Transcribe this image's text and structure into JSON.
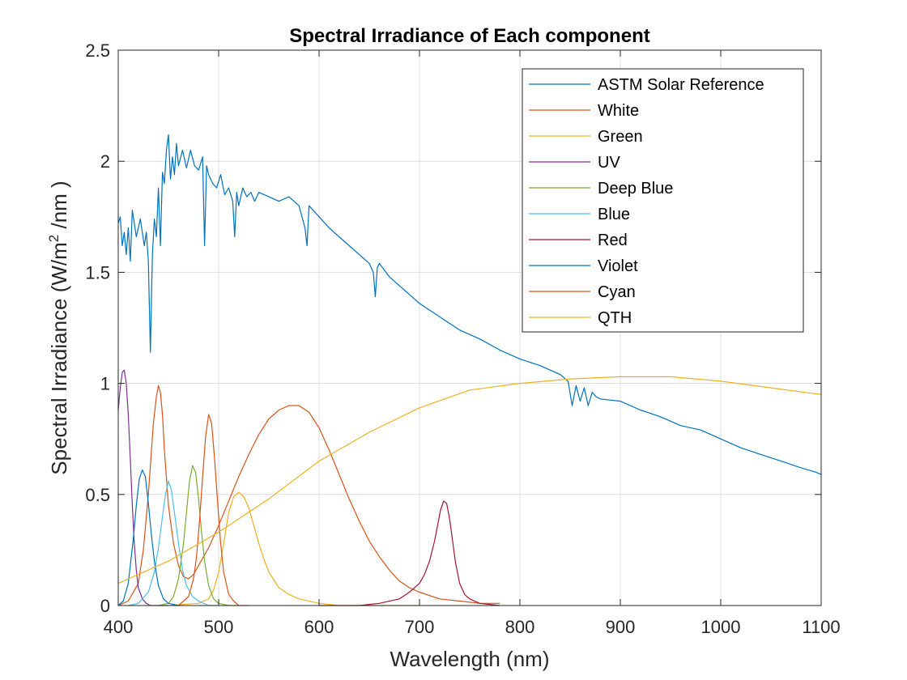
{
  "chart_data": {
    "type": "line",
    "title": "Spectral Irradiance of Each component",
    "xlabel": "Wavelength (nm)",
    "ylabel_parts": [
      "Spectral Irradiance (W/m",
      "2",
      " /nm )"
    ],
    "xlim": [
      400,
      1100
    ],
    "ylim": [
      0,
      2.5
    ],
    "xticks": [
      400,
      500,
      600,
      700,
      800,
      900,
      1000,
      1100
    ],
    "yticks": [
      0,
      0.5,
      1,
      1.5,
      2,
      2.5
    ],
    "xtick_labels": [
      "400",
      "500",
      "600",
      "700",
      "800",
      "900",
      "1000",
      "1100"
    ],
    "ytick_labels": [
      "0",
      "0.5",
      "1",
      "1.5",
      "2",
      "2.5"
    ],
    "grid": true,
    "legend_position": "top-right",
    "series": [
      {
        "name": "ASTM Solar Reference",
        "color": "#0072BD",
        "x": [
          400,
          402,
          404,
          406,
          408,
          410,
          412,
          414,
          418,
          422,
          426,
          428,
          430,
          432,
          434,
          436,
          438,
          440,
          442,
          444,
          446,
          448,
          450,
          452,
          454,
          456,
          458,
          460,
          464,
          468,
          472,
          476,
          480,
          484,
          486,
          488,
          490,
          494,
          498,
          502,
          506,
          510,
          514,
          516,
          518,
          520,
          524,
          528,
          532,
          536,
          540,
          550,
          560,
          570,
          580,
          586,
          588,
          590,
          600,
          610,
          620,
          630,
          640,
          650,
          654,
          656,
          658,
          660,
          670,
          680,
          690,
          700,
          720,
          740,
          760,
          780,
          800,
          820,
          840,
          848,
          852,
          856,
          860,
          864,
          868,
          872,
          876,
          880,
          900,
          920,
          940,
          960,
          980,
          1000,
          1020,
          1040,
          1060,
          1080,
          1095,
          1100
        ],
        "y": [
          1.72,
          1.75,
          1.62,
          1.68,
          1.58,
          1.7,
          1.55,
          1.78,
          1.66,
          1.74,
          1.62,
          1.68,
          1.55,
          1.14,
          1.58,
          1.74,
          1.66,
          1.88,
          1.62,
          1.95,
          1.9,
          2.05,
          2.12,
          1.92,
          2.02,
          1.94,
          2.08,
          1.98,
          2.05,
          1.97,
          2.05,
          1.98,
          1.96,
          2.02,
          1.62,
          1.98,
          1.94,
          1.9,
          1.88,
          1.94,
          1.85,
          1.88,
          1.82,
          1.66,
          1.86,
          1.8,
          1.88,
          1.84,
          1.86,
          1.82,
          1.86,
          1.84,
          1.82,
          1.84,
          1.8,
          1.7,
          1.62,
          1.8,
          1.75,
          1.7,
          1.66,
          1.62,
          1.58,
          1.54,
          1.5,
          1.39,
          1.52,
          1.54,
          1.48,
          1.44,
          1.4,
          1.36,
          1.3,
          1.24,
          1.2,
          1.15,
          1.11,
          1.08,
          1.04,
          1.01,
          0.9,
          0.99,
          0.92,
          0.98,
          0.9,
          0.96,
          0.94,
          0.93,
          0.92,
          0.88,
          0.85,
          0.81,
          0.79,
          0.75,
          0.71,
          0.68,
          0.65,
          0.62,
          0.6,
          0.59
        ]
      },
      {
        "name": "White",
        "color": "#D95319",
        "x": [
          400,
          410,
          420,
          425,
          430,
          435,
          438,
          440,
          442,
          444,
          446,
          450,
          455,
          460,
          465,
          470,
          475,
          480,
          490,
          500,
          510,
          520,
          530,
          540,
          550,
          560,
          570,
          580,
          590,
          600,
          610,
          620,
          630,
          640,
          650,
          660,
          670,
          680,
          690,
          700,
          720,
          740,
          760,
          780
        ],
        "y": [
          0.0,
          0.02,
          0.1,
          0.25,
          0.5,
          0.82,
          0.94,
          0.99,
          0.96,
          0.86,
          0.7,
          0.45,
          0.28,
          0.18,
          0.13,
          0.12,
          0.14,
          0.18,
          0.26,
          0.36,
          0.47,
          0.58,
          0.68,
          0.77,
          0.84,
          0.88,
          0.9,
          0.9,
          0.87,
          0.8,
          0.7,
          0.59,
          0.48,
          0.38,
          0.29,
          0.22,
          0.16,
          0.11,
          0.08,
          0.06,
          0.03,
          0.02,
          0.01,
          0.01
        ]
      },
      {
        "name": "Green",
        "color": "#EDB120",
        "x": [
          450,
          480,
          490,
          495,
          500,
          505,
          510,
          515,
          520,
          525,
          530,
          535,
          540,
          545,
          550,
          560,
          570,
          580,
          600,
          620,
          650,
          700
        ],
        "y": [
          0.0,
          0.01,
          0.03,
          0.07,
          0.15,
          0.28,
          0.42,
          0.49,
          0.51,
          0.49,
          0.44,
          0.36,
          0.28,
          0.21,
          0.15,
          0.08,
          0.05,
          0.03,
          0.01,
          0.0,
          0.0,
          0.0
        ]
      },
      {
        "name": "UV",
        "color": "#7E2F8E",
        "x": [
          400,
          402,
          404,
          406,
          408,
          410,
          412,
          414,
          416,
          418,
          420,
          424,
          428,
          432,
          440,
          450
        ],
        "y": [
          0.88,
          0.98,
          1.05,
          1.06,
          1.0,
          0.86,
          0.66,
          0.45,
          0.28,
          0.16,
          0.08,
          0.03,
          0.01,
          0.0,
          0.0,
          0.0
        ]
      },
      {
        "name": "Deep Blue",
        "color": "#77AC30",
        "x": [
          440,
          450,
          455,
          460,
          465,
          468,
          471,
          474,
          477,
          480,
          483,
          486,
          490,
          495,
          500,
          510,
          520
        ],
        "y": [
          0.0,
          0.01,
          0.04,
          0.12,
          0.28,
          0.42,
          0.56,
          0.63,
          0.6,
          0.48,
          0.33,
          0.2,
          0.09,
          0.03,
          0.01,
          0.0,
          0.0
        ]
      },
      {
        "name": "Blue",
        "color": "#4DBEEE",
        "x": [
          410,
          420,
          430,
          436,
          440,
          444,
          447,
          450,
          453,
          456,
          460,
          464,
          468,
          474,
          480,
          490,
          500
        ],
        "y": [
          0.0,
          0.01,
          0.06,
          0.15,
          0.26,
          0.4,
          0.5,
          0.56,
          0.52,
          0.42,
          0.28,
          0.16,
          0.09,
          0.04,
          0.02,
          0.0,
          0.0
        ]
      },
      {
        "name": "Red",
        "color": "#A2142F",
        "x": [
          600,
          640,
          660,
          680,
          690,
          700,
          705,
          710,
          715,
          718,
          721,
          724,
          727,
          730,
          733,
          736,
          740,
          745,
          750,
          760,
          780
        ],
        "y": [
          0.0,
          0.0,
          0.01,
          0.03,
          0.06,
          0.1,
          0.14,
          0.2,
          0.29,
          0.36,
          0.43,
          0.47,
          0.46,
          0.39,
          0.29,
          0.19,
          0.1,
          0.05,
          0.03,
          0.01,
          0.0
        ]
      },
      {
        "name": "Violet",
        "color": "#0072BD",
        "x": [
          400,
          405,
          410,
          415,
          418,
          421,
          424,
          427,
          430,
          433,
          436,
          440,
          445,
          450,
          460
        ],
        "y": [
          0.0,
          0.02,
          0.1,
          0.3,
          0.45,
          0.57,
          0.61,
          0.58,
          0.46,
          0.32,
          0.2,
          0.09,
          0.03,
          0.01,
          0.0
        ]
      },
      {
        "name": "Cyan",
        "color": "#D95319",
        "x": [
          460,
          470,
          475,
          478,
          481,
          484,
          487,
          490,
          493,
          496,
          499,
          502,
          505,
          510,
          515,
          520,
          530
        ],
        "y": [
          0.0,
          0.04,
          0.12,
          0.22,
          0.38,
          0.58,
          0.76,
          0.86,
          0.82,
          0.66,
          0.46,
          0.28,
          0.15,
          0.05,
          0.02,
          0.0,
          0.0
        ]
      },
      {
        "name": "QTH",
        "color": "#EDB120",
        "x": [
          400,
          450,
          500,
          550,
          600,
          650,
          700,
          750,
          800,
          850,
          900,
          950,
          1000,
          1050,
          1100
        ],
        "y": [
          0.1,
          0.2,
          0.33,
          0.48,
          0.65,
          0.78,
          0.89,
          0.97,
          1.0,
          1.02,
          1.03,
          1.03,
          1.01,
          0.98,
          0.95
        ]
      }
    ]
  }
}
